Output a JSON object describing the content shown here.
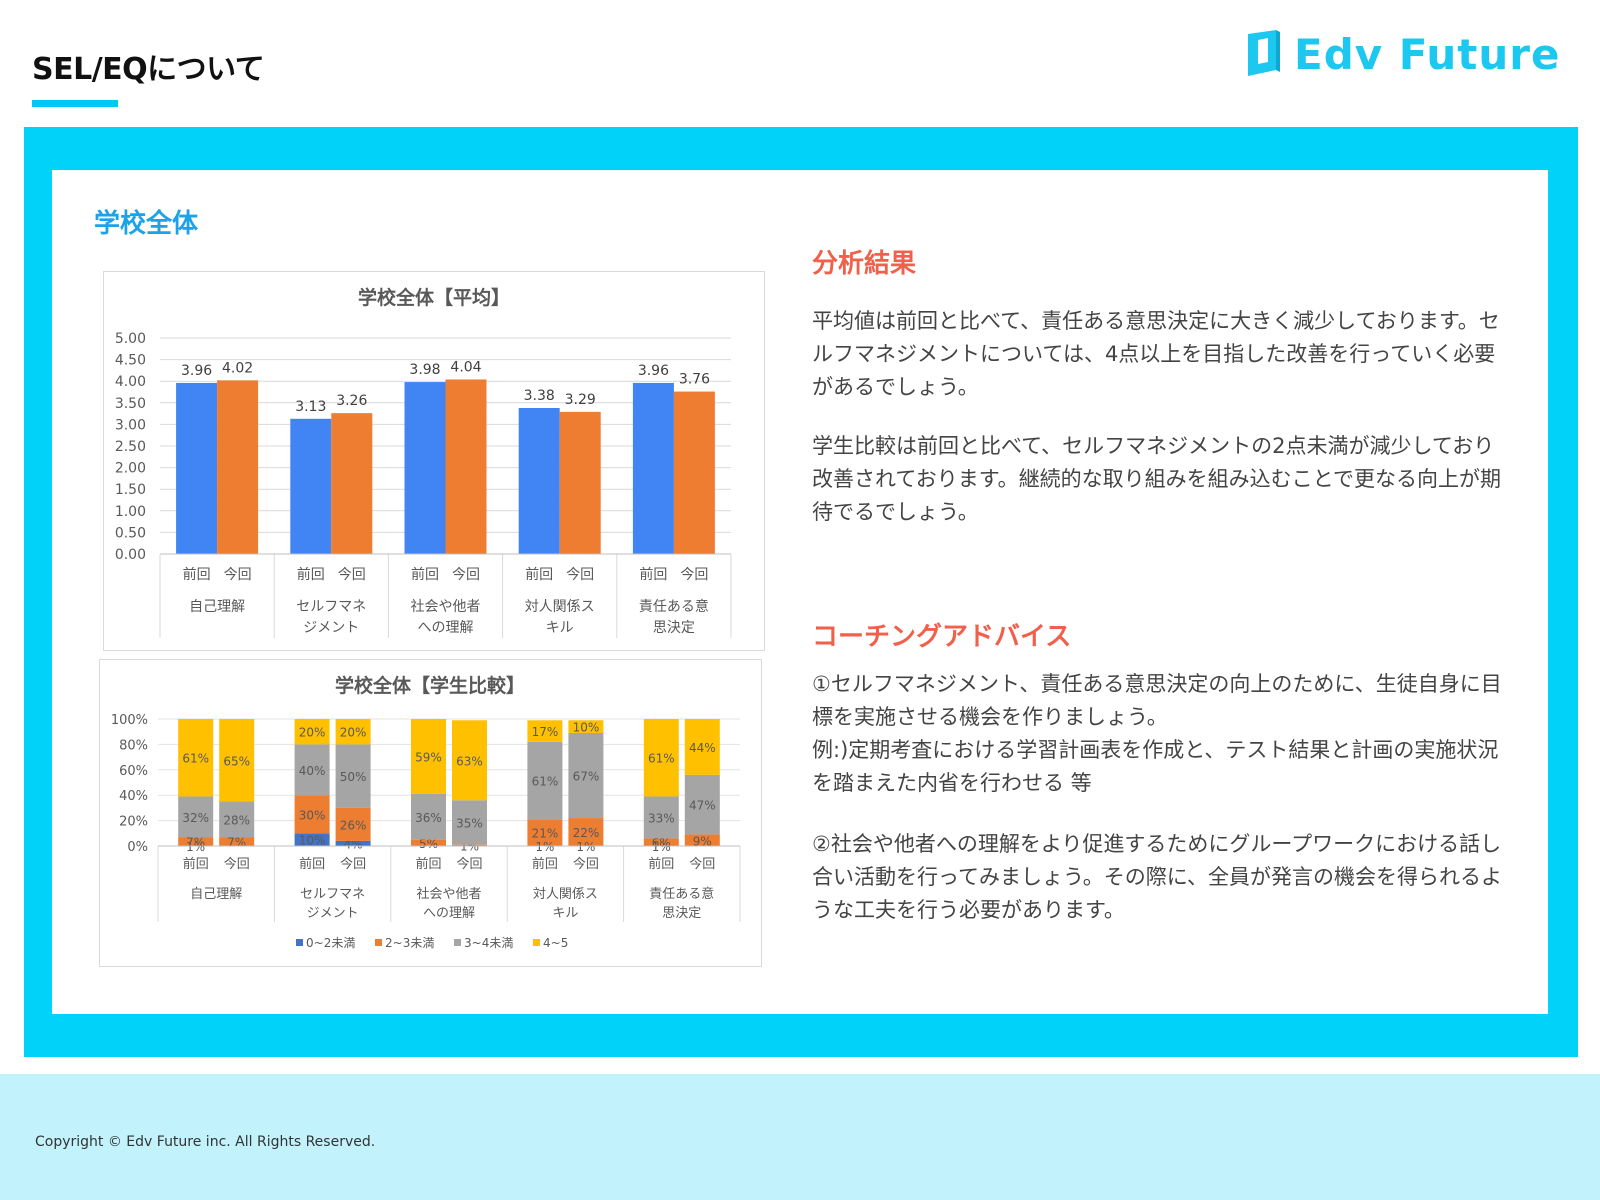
{
  "header": {
    "title": "SEL/EQについて",
    "logo_text": "Edv Future",
    "logo_color": "#1cc7f0"
  },
  "section": {
    "title": "学校全体"
  },
  "analysis": {
    "heading": "分析結果",
    "paragraphs": [
      "平均値は前回と比べて、責任ある意思決定に大きく減少しております。セルフマネジメントについては、4点以上を目指した改善を行っていく必要があるでしょう。",
      "学生比較は前回と比べて、セルフマネジメントの2点未満が減少しており改善されております。継続的な取り組みを組み込むことで更なる向上が期待でるでしょう。"
    ]
  },
  "coaching": {
    "heading": "コーチングアドバイス",
    "paragraphs": [
      "①セルフマネジメント、責任ある意思決定の向上のために、生徒自身に目標を実施させる機会を作りましょう。\n例:)定期考査における学習計画表を作成と、テスト結果と計画の実施状況を踏まえた内省を行わせる 等",
      "②社会や他者への理解をより促進するためにグループワークにおける話し合い活動を行ってみましょう。その際に、全員が発言の機会を得られるような工夫を行う必要があります。"
    ]
  },
  "footer": {
    "copyright": "Copyright © Edv Future inc. All Rights Reserved."
  },
  "colors": {
    "accent": "#00d2fa",
    "heading_red": "#f0604a",
    "section_blue": "#1ba3ea",
    "footer_bg": "#c2f3fd"
  },
  "chart_data": [
    {
      "type": "bar",
      "title": "学校全体【平均】",
      "categories": [
        "自己理解",
        "セルフマネジメント",
        "社会や他者への理解",
        "対人関係スキル",
        "責任ある意思決定"
      ],
      "category_lines": [
        [
          "自己理解"
        ],
        [
          "セルフマネ",
          "ジメント"
        ],
        [
          "社会や他者",
          "への理解"
        ],
        [
          "対人関係ス",
          "キル"
        ],
        [
          "責任ある意",
          "思決定"
        ]
      ],
      "sub_labels": [
        "前回",
        "今回"
      ],
      "series": [
        {
          "name": "前回",
          "color": "#4184f3",
          "values": [
            3.96,
            3.13,
            3.98,
            3.38,
            3.96
          ],
          "labels": [
            "3.96",
            "3.13",
            "3.98",
            "3.38",
            "3.96"
          ]
        },
        {
          "name": "今回",
          "color": "#ee7d31",
          "values": [
            4.02,
            3.26,
            4.04,
            3.29,
            3.76
          ],
          "labels": [
            "4.02",
            "3.26",
            "4.04",
            "3.29",
            "3.76"
          ]
        }
      ],
      "ylim": [
        0,
        5
      ],
      "yticks": [
        "0.00",
        "0.50",
        "1.00",
        "1.50",
        "2.00",
        "2.50",
        "3.00",
        "3.50",
        "4.00",
        "4.50",
        "5.00"
      ],
      "grid": true
    },
    {
      "type": "bar",
      "stacked": true,
      "title": "学校全体【学生比較】",
      "categories": [
        "自己理解",
        "セルフマネジメント",
        "社会や他者への理解",
        "対人関係スキル",
        "責任ある意思決定"
      ],
      "category_lines": [
        [
          "自己理解"
        ],
        [
          "セルフマネ",
          "ジメント"
        ],
        [
          "社会や他者",
          "への理解"
        ],
        [
          "対人関係ス",
          "キル"
        ],
        [
          "責任ある意",
          "思決定"
        ]
      ],
      "sub_labels": [
        "前回",
        "今回"
      ],
      "segments": [
        {
          "name": "0~2未満",
          "color": "#4472c4"
        },
        {
          "name": "2~3未満",
          "color": "#ed7d31"
        },
        {
          "name": "3~4未満",
          "color": "#a5a5a5"
        },
        {
          "name": "4~5",
          "color": "#ffc000"
        }
      ],
      "bars": [
        {
          "values": [
            0,
            7,
            32,
            61
          ],
          "labels": [
            "",
            "7%",
            "32%",
            "61%"
          ],
          "extra_label": "1%"
        },
        {
          "values": [
            0,
            7,
            28,
            65
          ],
          "labels": [
            "",
            "7%",
            "28%",
            "65%"
          ],
          "extra_label": ""
        },
        {
          "values": [
            10,
            30,
            40,
            20
          ],
          "labels": [
            "10%",
            "30%",
            "40%",
            "20%"
          ],
          "extra_label": ""
        },
        {
          "values": [
            4,
            26,
            50,
            20
          ],
          "labels": [
            "4%",
            "26%",
            "50%",
            "20%"
          ],
          "extra_label": ""
        },
        {
          "values": [
            0,
            5,
            36,
            59
          ],
          "labels": [
            "",
            "5%",
            "36%",
            "59%"
          ],
          "extra_label": ""
        },
        {
          "values": [
            0,
            1,
            35,
            63
          ],
          "labels": [
            "",
            "1%",
            "35%",
            "63%"
          ],
          "extra_label": ""
        },
        {
          "values": [
            0,
            21,
            61,
            17
          ],
          "labels": [
            "",
            "21%",
            "61%",
            "17%"
          ],
          "extra_label": "1%"
        },
        {
          "values": [
            0,
            22,
            67,
            10
          ],
          "labels": [
            "",
            "22%",
            "67%",
            "10%"
          ],
          "extra_label": "1%"
        },
        {
          "values": [
            0,
            6,
            33,
            61
          ],
          "labels": [
            "",
            "6%",
            "33%",
            "61%"
          ],
          "extra_label": "1%"
        },
        {
          "values": [
            0,
            9,
            47,
            44
          ],
          "labels": [
            "",
            "9%",
            "47%",
            "44%"
          ],
          "extra_label": ""
        }
      ],
      "ylim": [
        0,
        100
      ],
      "yticks": [
        "0%",
        "20%",
        "40%",
        "60%",
        "80%",
        "100%"
      ],
      "legend_position": "bottom"
    }
  ]
}
